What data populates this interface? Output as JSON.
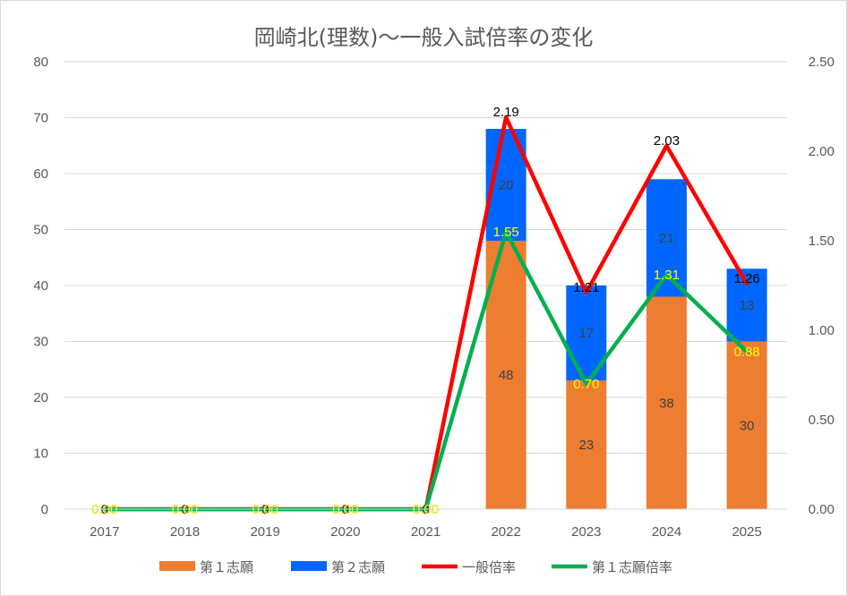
{
  "chart_data": {
    "type": "bar",
    "title": "岡崎北(理数)～一般入試倍率の変化",
    "categories": [
      "2017",
      "2018",
      "2019",
      "2020",
      "2021",
      "2022",
      "2023",
      "2024",
      "2025"
    ],
    "y_left": {
      "min": 0,
      "max": 80,
      "step": 10,
      "tick_labels": [
        "0",
        "10",
        "20",
        "30",
        "40",
        "50",
        "60",
        "70",
        "80"
      ]
    },
    "y_right": {
      "min": 0,
      "max": 2.5,
      "step": 0.5,
      "tick_labels": [
        "0.00",
        "0.50",
        "1.00",
        "1.50",
        "2.00",
        "2.50"
      ]
    },
    "grid": true,
    "legend_position": "bottom",
    "series": [
      {
        "name": "第１志願",
        "kind": "bar",
        "axis": "left",
        "color": "#ED7D31",
        "values": [
          0,
          0,
          0,
          0,
          0,
          48,
          23,
          38,
          30
        ],
        "labels": [
          "0",
          "0",
          "0",
          "0",
          "0",
          "48",
          "23",
          "38",
          "30"
        ]
      },
      {
        "name": "第２志願",
        "kind": "bar",
        "axis": "left",
        "color": "#0066FF",
        "values": [
          0,
          0,
          0,
          0,
          0,
          20,
          17,
          21,
          13
        ],
        "labels": [
          "0",
          "0",
          "0",
          "0",
          "0",
          "20",
          "17",
          "21",
          "13"
        ]
      },
      {
        "name": "一般倍率",
        "kind": "line",
        "axis": "right",
        "color": "#FF0000",
        "values": [
          0,
          0,
          0,
          0,
          0,
          2.19,
          1.21,
          2.03,
          1.26
        ],
        "labels": [
          "0.00",
          "0.00",
          "0.00",
          "0.00",
          "0.00",
          "2.19",
          "1.21",
          "2.03",
          "1.26"
        ]
      },
      {
        "name": "第１志願倍率",
        "kind": "line",
        "axis": "right",
        "color": "#00B050",
        "values": [
          0,
          0,
          0,
          0,
          0,
          1.55,
          0.7,
          1.31,
          0.88
        ],
        "labels": [
          "0.00",
          "0.00",
          "0.00",
          "0.00",
          "0.00",
          "1.55",
          "0.70",
          "1.31",
          "0.88"
        ]
      }
    ]
  }
}
